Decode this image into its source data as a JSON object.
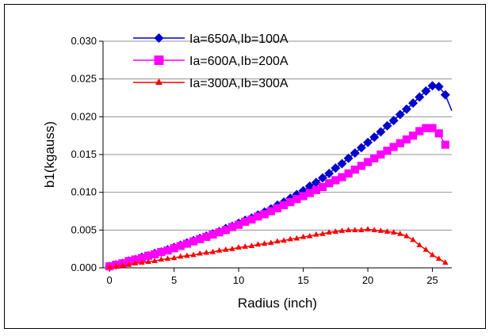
{
  "chart_data": {
    "type": "scatter",
    "xlabel": "Radius (inch)",
    "ylabel": "b1(kgauss)",
    "xlim": [
      -0.5,
      26.5
    ],
    "ylim": [
      0,
      0.03
    ],
    "xticks": [
      0,
      5,
      10,
      15,
      20,
      25
    ],
    "xtick_labels": [
      "0",
      "5",
      "10",
      "15",
      "20",
      "25"
    ],
    "yticks": [
      0,
      0.005,
      0.01,
      0.015,
      0.02,
      0.025,
      0.03
    ],
    "ytick_labels": [
      "0.000",
      "0.005",
      "0.010",
      "0.015",
      "0.020",
      "0.025",
      "0.030"
    ],
    "grid": "horizontal",
    "legend_position": "top-left",
    "series": [
      {
        "name": "Ia=650A,Ib=100A",
        "color": "#0000cc",
        "marker": "diamond",
        "x": [
          0,
          0.5,
          1,
          1.5,
          2,
          2.5,
          3,
          3.5,
          4,
          4.5,
          5,
          5.5,
          6,
          6.5,
          7,
          7.5,
          8,
          8.5,
          9,
          9.5,
          10,
          10.5,
          11,
          11.5,
          12,
          12.5,
          13,
          13.5,
          14,
          14.5,
          15,
          15.5,
          16,
          16.5,
          17,
          17.5,
          18,
          18.5,
          19,
          19.5,
          20,
          20.5,
          21,
          21.5,
          22,
          22.5,
          23,
          23.5,
          24,
          24.5,
          25,
          25.5,
          26
        ],
        "y": [
          0.0002,
          0.0004,
          0.0006,
          0.0009,
          0.0011,
          0.0014,
          0.0016,
          0.0019,
          0.0021,
          0.0024,
          0.0027,
          0.003,
          0.0033,
          0.0036,
          0.0039,
          0.0042,
          0.0045,
          0.0048,
          0.0052,
          0.0055,
          0.0059,
          0.0063,
          0.0066,
          0.007,
          0.0074,
          0.0078,
          0.0083,
          0.0087,
          0.0092,
          0.0097,
          0.0102,
          0.0108,
          0.0113,
          0.0119,
          0.0125,
          0.0132,
          0.0138,
          0.0145,
          0.0152,
          0.0159,
          0.0166,
          0.0173,
          0.018,
          0.0188,
          0.0195,
          0.0203,
          0.021,
          0.0218,
          0.0226,
          0.0234,
          0.0241,
          0.024,
          0.0229
        ],
        "tail": {
          "x": 26.5,
          "y": 0.0208
        }
      },
      {
        "name": "Ia=600A,Ib=200A",
        "color": "#ff00ff",
        "marker": "square",
        "x": [
          0,
          0.5,
          1,
          1.5,
          2,
          2.5,
          3,
          3.5,
          4,
          4.5,
          5,
          5.5,
          6,
          6.5,
          7,
          7.5,
          8,
          8.5,
          9,
          9.5,
          10,
          10.5,
          11,
          11.5,
          12,
          12.5,
          13,
          13.5,
          14,
          14.5,
          15,
          15.5,
          16,
          16.5,
          17,
          17.5,
          18,
          18.5,
          19,
          19.5,
          20,
          20.5,
          21,
          21.5,
          22,
          22.5,
          23,
          23.5,
          24,
          24.5,
          25,
          25.5,
          26
        ],
        "y": [
          0.0002,
          0.0004,
          0.0006,
          0.0009,
          0.0011,
          0.0013,
          0.0016,
          0.0018,
          0.0021,
          0.0023,
          0.0026,
          0.0029,
          0.0032,
          0.0035,
          0.0038,
          0.0041,
          0.0044,
          0.0047,
          0.005,
          0.0054,
          0.0057,
          0.0061,
          0.0064,
          0.0068,
          0.0071,
          0.0075,
          0.0079,
          0.0083,
          0.0087,
          0.0091,
          0.0095,
          0.0099,
          0.0103,
          0.0107,
          0.0112,
          0.0116,
          0.012,
          0.0125,
          0.013,
          0.0135,
          0.014,
          0.0145,
          0.015,
          0.0155,
          0.016,
          0.0165,
          0.017,
          0.0175,
          0.0181,
          0.0185,
          0.0185,
          0.0178,
          0.0163
        ]
      },
      {
        "name": "Ia=300A,Ib=300A",
        "color": "#ff0000",
        "marker": "triangle",
        "x": [
          0,
          0.5,
          1,
          1.5,
          2,
          2.5,
          3,
          3.5,
          4,
          4.5,
          5,
          5.5,
          6,
          6.5,
          7,
          7.5,
          8,
          8.5,
          9,
          9.5,
          10,
          10.5,
          11,
          11.5,
          12,
          12.5,
          13,
          13.5,
          14,
          14.5,
          15,
          15.5,
          16,
          16.5,
          17,
          17.5,
          18,
          18.5,
          19,
          19.5,
          20,
          20.5,
          21,
          21.5,
          22,
          22.5,
          23,
          23.5,
          24,
          24.5,
          25,
          25.5,
          26
        ],
        "y": [
          0.0001,
          0.0002,
          0.0003,
          0.0004,
          0.0006,
          0.0007,
          0.0008,
          0.0009,
          0.0011,
          0.0012,
          0.0013,
          0.0015,
          0.0016,
          0.0017,
          0.0019,
          0.002,
          0.0021,
          0.0023,
          0.0024,
          0.0025,
          0.0027,
          0.0028,
          0.0029,
          0.0031,
          0.0032,
          0.0033,
          0.0035,
          0.0036,
          0.0038,
          0.0039,
          0.0041,
          0.0042,
          0.0044,
          0.0045,
          0.0047,
          0.0048,
          0.0049,
          0.005,
          0.005,
          0.005,
          0.0051,
          0.005,
          0.0049,
          0.0048,
          0.0047,
          0.0045,
          0.0042,
          0.0037,
          0.003,
          0.0024,
          0.0017,
          0.0012,
          0.0007
        ]
      }
    ]
  }
}
